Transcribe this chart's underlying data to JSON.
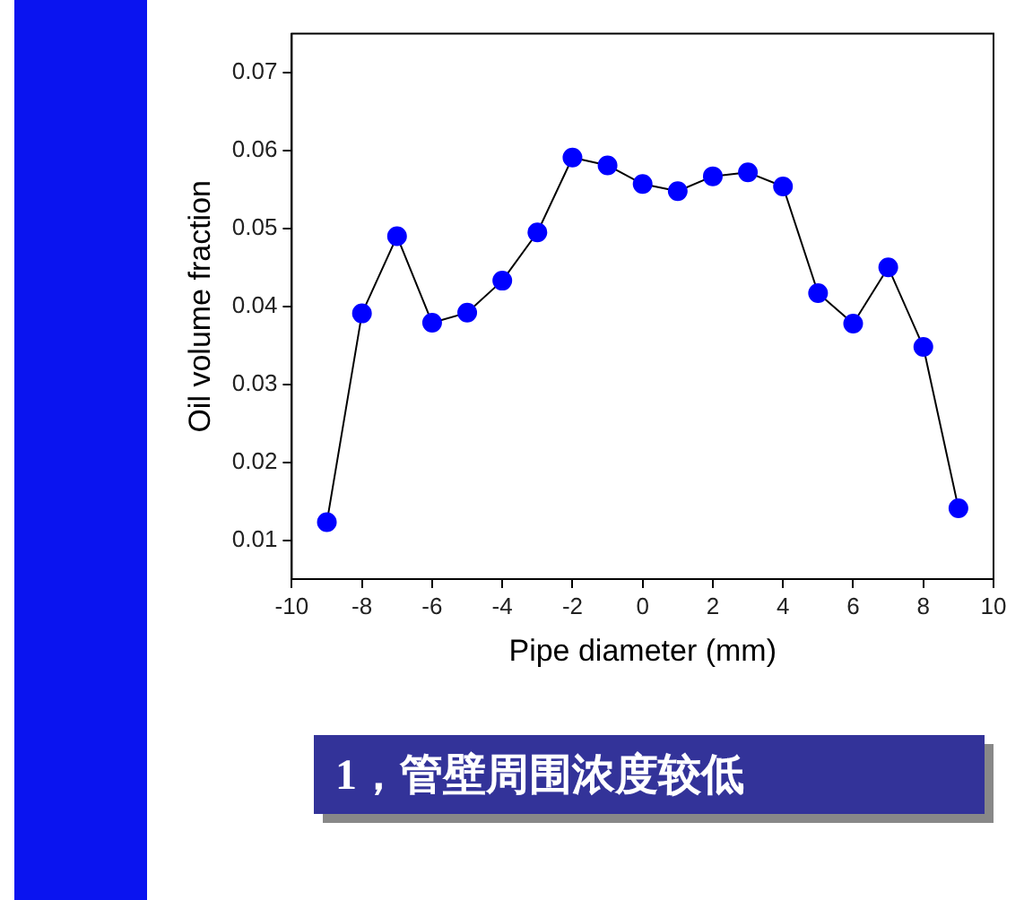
{
  "chart_data": {
    "type": "line",
    "xlabel": "Pipe diameter (mm)",
    "ylabel": "Oil volume fraction",
    "x": [
      -9,
      -8,
      -7,
      -6,
      -5,
      -4,
      -3,
      -2,
      -1,
      0,
      1,
      2,
      3,
      4,
      5,
      6,
      7,
      8,
      9
    ],
    "series": [
      {
        "color": "#0000ff",
        "values": [
          0.0123,
          0.0391,
          0.049,
          0.0379,
          0.0392,
          0.0433,
          0.0495,
          0.0591,
          0.0581,
          0.0557,
          0.0548,
          0.0567,
          0.0572,
          0.0554,
          0.0417,
          0.0378,
          0.045,
          0.0348,
          0.0141
        ]
      }
    ],
    "xlim": [
      -10,
      10
    ],
    "xticks": [
      -10,
      -8,
      -6,
      -4,
      -2,
      0,
      2,
      4,
      6,
      8,
      10
    ],
    "ylim": [
      0.005,
      0.075
    ],
    "yticks": [
      0.01,
      0.02,
      0.03,
      0.04,
      0.05,
      0.06,
      0.07
    ],
    "marker": "circle",
    "line_style": "solid",
    "grid": false,
    "legend": false,
    "annotations": [
      "1，管壁周围浓度较低"
    ]
  }
}
